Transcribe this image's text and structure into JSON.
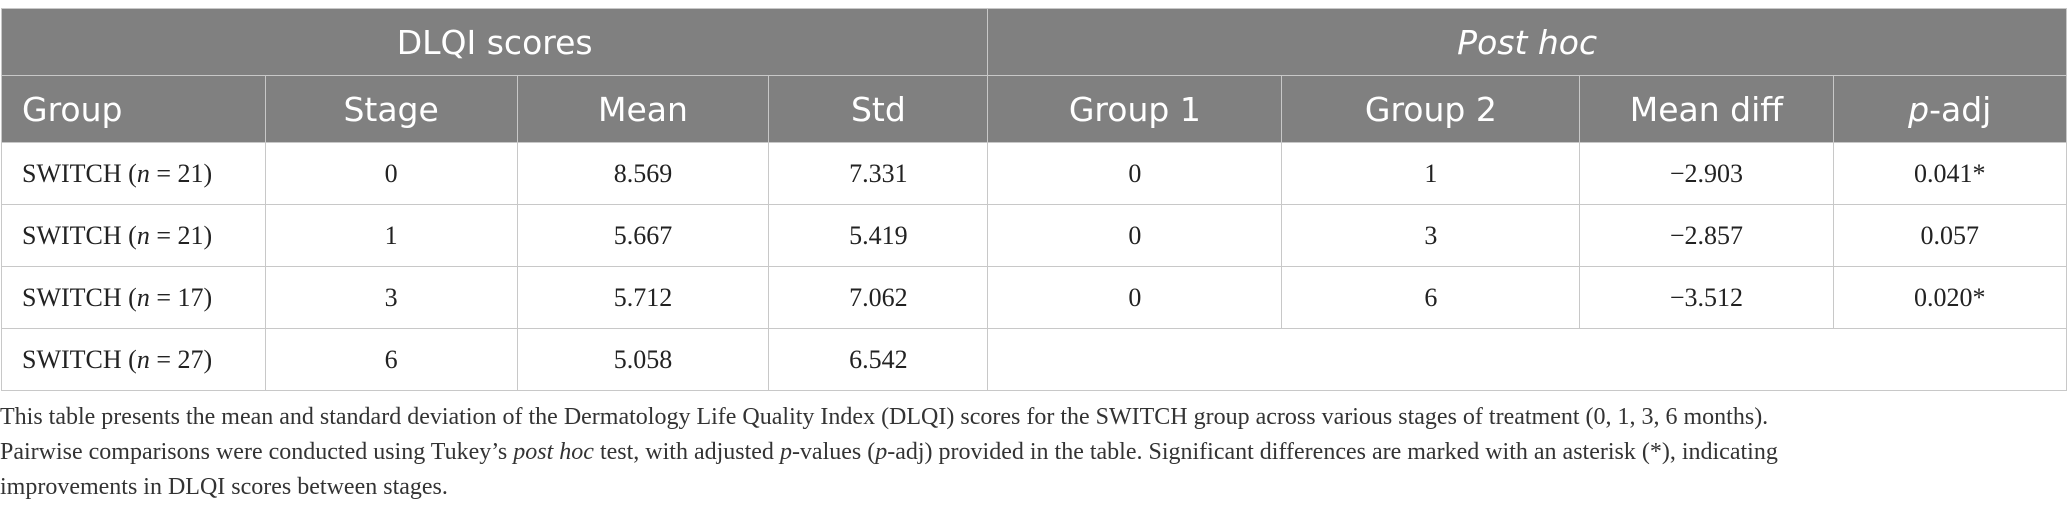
{
  "table": {
    "group_headers": {
      "left": "DLQI scores",
      "right": "Post hoc"
    },
    "columns": [
      "Group",
      "Stage",
      "Mean",
      "Std",
      "Group 1",
      "Group 2",
      "Mean diff",
      "-adj"
    ],
    "column_p_prefix": "p",
    "rows": [
      {
        "group_prefix": "SWITCH (",
        "n_label": "n",
        "n_value": " = 21)",
        "stage": "0",
        "mean": "8.569",
        "std": "7.331",
        "g1": "0",
        "g2": "1",
        "mean_diff": "−2.903",
        "p_adj": "0.041*"
      },
      {
        "group_prefix": "SWITCH (",
        "n_label": "n",
        "n_value": " = 21)",
        "stage": "1",
        "mean": "5.667",
        "std": "5.419",
        "g1": "0",
        "g2": "3",
        "mean_diff": "−2.857",
        "p_adj": "0.057"
      },
      {
        "group_prefix": "SWITCH (",
        "n_label": "n",
        "n_value": " = 17)",
        "stage": "3",
        "mean": "5.712",
        "std": "7.062",
        "g1": "0",
        "g2": "6",
        "mean_diff": "−3.512",
        "p_adj": "0.020*"
      },
      {
        "group_prefix": "SWITCH (",
        "n_label": "n",
        "n_value": " = 27)",
        "stage": "6",
        "mean": "5.058",
        "std": "6.542"
      }
    ]
  },
  "footnote": {
    "line1": "This table presents the mean and standard deviation of the Dermatology Life Quality Index (DLQI) scores for the SWITCH group across various stages of treatment (0, 1, 3, 6 months).",
    "line2_a": "Pairwise comparisons were conducted using Tukey’s ",
    "line2_b": "post hoc",
    "line2_c": " test, with adjusted ",
    "line2_d": "p",
    "line2_e": "-values (",
    "line2_f": "p",
    "line2_g": "-adj) provided in the table. Significant differences are marked with an asterisk (*), indicating",
    "line3": "improvements in DLQI scores between stages."
  }
}
